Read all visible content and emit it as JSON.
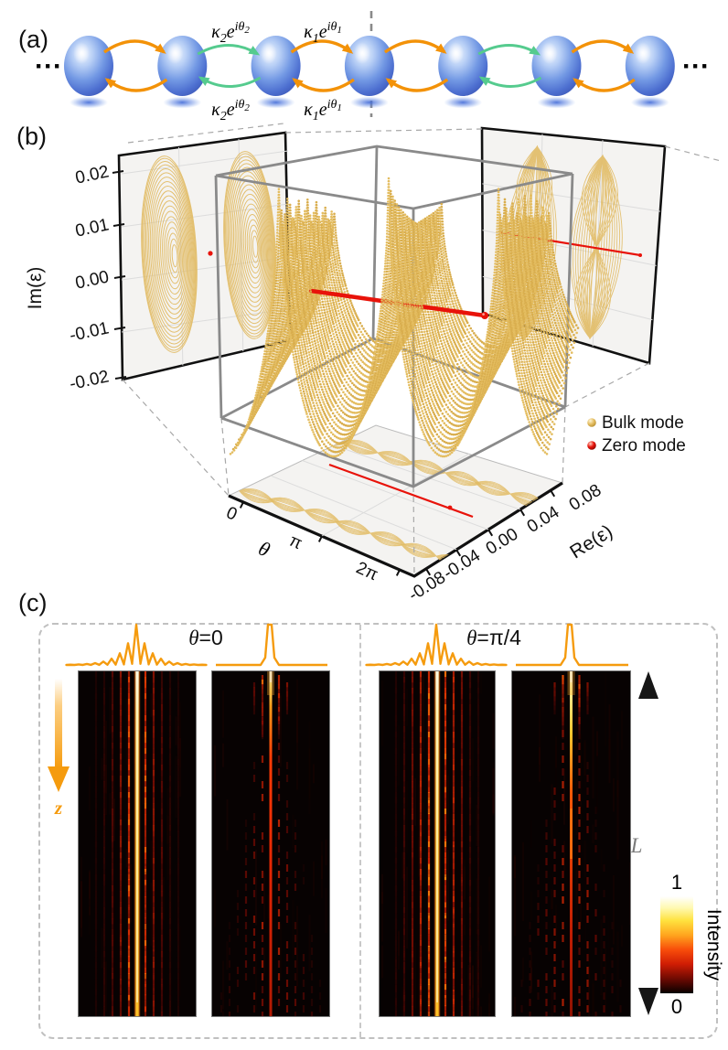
{
  "panel_a": {
    "label": "(a)",
    "dots_left": "···",
    "dots_right": "···",
    "coupling_k2": {
      "kappa": "κ",
      "sub": "2",
      "e": "e",
      "sup": "iθ",
      "supsub": "2"
    },
    "coupling_k1": {
      "kappa": "κ",
      "sub": "1",
      "e": "e",
      "sup": "iθ",
      "supsub": "1"
    }
  },
  "panel_b": {
    "label": "(b)",
    "im_axis": {
      "label": "Im(ε)",
      "ticks": [
        "0.02",
        "0.01",
        "0.00",
        "-0.01",
        "-0.02"
      ]
    },
    "theta_axis": {
      "label": "θ",
      "ticks": [
        "0",
        "π",
        "2π"
      ]
    },
    "re_axis": {
      "label": "Re(ε)",
      "ticks": [
        "0.08",
        "0.04",
        "0.00",
        "-0.04",
        "-0.08"
      ]
    },
    "legend": [
      {
        "label": "Bulk mode",
        "color": "#E5BE62"
      },
      {
        "label": "Zero mode",
        "color": "#E8130A"
      }
    ]
  },
  "panel_c": {
    "label": "(c)",
    "groups": [
      {
        "theta": "θ",
        "rest": "=0"
      },
      {
        "theta": "θ",
        "rest": "=π/4"
      }
    ],
    "z_label": "z",
    "length_label": "L",
    "colorbar": {
      "label": "Intensity",
      "max": "1",
      "min": "0"
    }
  },
  "chart_data": [
    {
      "type": "scatter",
      "title": "Complex energy spectrum of the non-Hermitian lattice (panel b)",
      "axes": {
        "theta": {
          "label": "θ",
          "ticks": [
            "0",
            "π",
            "2π"
          ],
          "range": [
            "0",
            "2π"
          ]
        },
        "re": {
          "label": "Re(ε)",
          "ticks": [
            0.08,
            0.04,
            0.0,
            -0.04,
            -0.08
          ],
          "range": [
            -0.08,
            0.08
          ]
        },
        "im": {
          "label": "Im(ε)",
          "ticks": [
            0.02,
            0.01,
            0.0,
            -0.01,
            -0.02
          ],
          "range": [
            -0.02,
            0.02
          ]
        }
      },
      "series": [
        {
          "name": "Bulk mode",
          "color": "#E5BE62",
          "description": "Bulk bands trace elliptical loops: Im(ε) spans ±0.02 and Re(ε) spans ±0.08; two lobes versus θ with nodes near θ=0, π, 2π; |ε| surface shows cusp peaks at the nodes and rounded valleys between them."
        },
        {
          "name": "Zero mode",
          "color": "#E8130A",
          "description": "Zero mode stays at Re(ε)=0, Im(ε)=0 for all θ (red line through the spectrum and its projections)."
        }
      ],
      "legend_position": "right",
      "grid": true
    },
    {
      "type": "heatmap",
      "title": "Propagation intensity maps (panel c)",
      "groups": [
        {
          "theta": "θ=0",
          "maps": [
            "zero-mode excitation: pinned bright column with weak side columns",
            "single-site excitation: spreading light cone with persistent central column"
          ]
        },
        {
          "theta": "θ=π/4",
          "maps": [
            "zero-mode excitation: pinned bright column plus weak spreading cone",
            "single-site excitation: spreading light cone"
          ]
        }
      ],
      "input_profiles": [
        "multi-peak localized mode (peaks decaying from center)",
        "single sharp peak"
      ],
      "z_axis": "z (propagation direction, downward)",
      "length_label": "L",
      "colorbar": {
        "label": "Intensity",
        "min": 0,
        "max": 1
      }
    }
  ]
}
